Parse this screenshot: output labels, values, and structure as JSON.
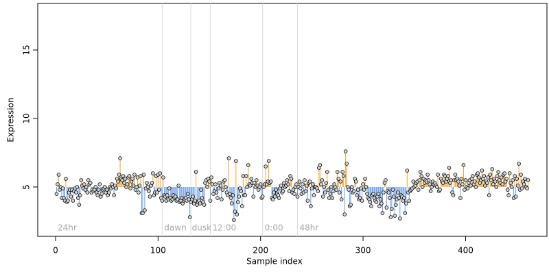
{
  "chart_data": {
    "type": "stem",
    "xlabel": "Sample index",
    "ylabel": "Expression",
    "xlim": [
      -17.4,
      479.4
    ],
    "ylim": [
      1.4,
      18.4
    ],
    "xticks": [
      0,
      100,
      200,
      300,
      400
    ],
    "yticks": [
      5,
      10,
      15
    ],
    "baseline": 5,
    "color_above": "#f0a030",
    "color_below": "#6d9de0",
    "vlines": [
      104,
      132,
      151,
      202,
      236
    ],
    "annotations": [
      {
        "text": "24hr",
        "x": 2
      },
      {
        "text": "dawn",
        "x": 106
      },
      {
        "text": "dusk",
        "x": 133
      },
      {
        "text": "12:00",
        "x": 153
      },
      {
        "text": "0:00",
        "x": 204
      },
      {
        "text": "48hr",
        "x": 238
      }
    ],
    "values": [
      4.5,
      5.2,
      5.9,
      4.8,
      5.0,
      4.2,
      4.9,
      4.2,
      4.0,
      5.6,
      3.9,
      4.0,
      4.6,
      4.8,
      4.3,
      4.8,
      4.0,
      4.7,
      4.9,
      4.6,
      5.0,
      4.2,
      3.7,
      4.4,
      5.5,
      5.1,
      4.9,
      5.2,
      4.8,
      5.0,
      4.6,
      5.5,
      5.2,
      5.3,
      4.6,
      4.8,
      4.7,
      4.8,
      5.0,
      4.6,
      4.4,
      4.8,
      5.2,
      4.3,
      4.5,
      4.8,
      4.9,
      5.0,
      4.6,
      4.8,
      4.4,
      4.6,
      5.0,
      4.9,
      5.2,
      5.0,
      4.4,
      5.1,
      4.9,
      5.6,
      5.4,
      5.9,
      7.1,
      5.6,
      5.5,
      5.8,
      5.3,
      5.6,
      5.0,
      5.2,
      5.7,
      5.8,
      4.9,
      5.4,
      5.6,
      5.1,
      5.9,
      4.8,
      5.0,
      5.7,
      4.6,
      5.1,
      5.8,
      3.1,
      3.1,
      5.9,
      3.3,
      4.9,
      5.3,
      5.0,
      4.7,
      4.3,
      5.1,
      5.3,
      6.0,
      4.4,
      4.6,
      5.8,
      4.6,
      5.9,
      4.8,
      6.0,
      4.2,
      4.0,
      5.7,
      4.4,
      4.3,
      4.0,
      4.4,
      4.1,
      4.9,
      4.2,
      4.0,
      4.1,
      4.4,
      4.2,
      4.3,
      4.0,
      4.1,
      5.1,
      3.9,
      4.0,
      4.2,
      3.8,
      4.0,
      4.1,
      4.2,
      4.0,
      4.5,
      4.1,
      2.8,
      3.9,
      4.1,
      4.3,
      3.8,
      4.0,
      6.1,
      3.7,
      3.9,
      4.0,
      3.8,
      4.8,
      4.2,
      3.9,
      3.7,
      5.3,
      5.5,
      5.0,
      5.6,
      5.4,
      4.0,
      5.7,
      5.2,
      4.5,
      4.7,
      5.2,
      4.6,
      4.2,
      4.9,
      5.3,
      5.1,
      4.1,
      4.8,
      5.4,
      5.5,
      5.0,
      4.6,
      4.4,
      7.1,
      4.5,
      4.2,
      3.8,
      4.4,
      2.6,
      3.2,
      6.9,
      3.0,
      3.9,
      4.3,
      4.9,
      4.7,
      3.6,
      5.8,
      4.4,
      4.4,
      5.8,
      5.0,
      6.6,
      5.2,
      5.1,
      5.6,
      5.3,
      4.3,
      5.3,
      5.0,
      5.5,
      5.1,
      4.8,
      5.0,
      5.2,
      4.2,
      4.3,
      5.0,
      5.2,
      6.5,
      5.2,
      5.4,
      6.9,
      5.3,
      5.4,
      4.2,
      4.1,
      4.6,
      4.3,
      4.8,
      4.5,
      4.4,
      4.2,
      4.9,
      5.1,
      4.6,
      4.7,
      5.3,
      5.0,
      5.1,
      5.5,
      5.2,
      4.7,
      5.8,
      5.6,
      4.6,
      4.8,
      4.5,
      5.0,
      5.2,
      4.3,
      5.0,
      5.4,
      4.9,
      4.5,
      5.2,
      4.6,
      5.5,
      4.7,
      5.1,
      4.0,
      5.3,
      5.4,
      3.6,
      4.9,
      5.2,
      4.4,
      5.0,
      5.0,
      4.9,
      4.7,
      6.4,
      6.6,
      5.2,
      5.5,
      4.3,
      5.0,
      4.6,
      5.3,
      6.1,
      4.8,
      4.2,
      4.5,
      5.0,
      4.2,
      4.7,
      5.2,
      5.0,
      4.8,
      6.1,
      5.6,
      4.6,
      5.4,
      4.1,
      6.1,
      5.8,
      3.0,
      7.6,
      6.7,
      5.0,
      4.8,
      3.6,
      3.7,
      5.0,
      4.6,
      4.7,
      5.6,
      5.4,
      4.4,
      4.8,
      4.1,
      4.2,
      4.9,
      4.0,
      5.2,
      4.8,
      5.6,
      5.0,
      4.5,
      4.2,
      4.1,
      3.9,
      3.6,
      4.4,
      4.5,
      4.2,
      4.0,
      3.9,
      4.3,
      4.5,
      3.6,
      4.1,
      3.8,
      3.1,
      4.6,
      5.3,
      5.5,
      3.5,
      4.7,
      4.6,
      4.2,
      2.8,
      3.4,
      4.8,
      4.3,
      2.9,
      3.7,
      4.1,
      4.6,
      4.2,
      2.7,
      4.4,
      4.3,
      4.0,
      4.2,
      3.1,
      3.8,
      6.2,
      4.6,
      4.0,
      4.7,
      4.8,
      4.9,
      5.4,
      5.0,
      5.1,
      5.3,
      5.4,
      4.8,
      5.5,
      6.1,
      5.8,
      5.0,
      5.6,
      5.3,
      5.5,
      5.4,
      5.9,
      5.5,
      5.2,
      4.7,
      5.0,
      5.4,
      5.2,
      5.3,
      5.1,
      5.0,
      5.9,
      4.7,
      4.8,
      5.6,
      5.4,
      5.3,
      5.9,
      5.8,
      5.4,
      5.6,
      5.8,
      6.4,
      5.3,
      5.5,
      4.6,
      4.4,
      5.5,
      5.9,
      5.5,
      5.6,
      5.4,
      5.1,
      4.2,
      5.6,
      5.2,
      6.6,
      4.8,
      5.5,
      5.0,
      4.9,
      5.3,
      5.5,
      5.1,
      5.6,
      5.8,
      5.2,
      5.4,
      5.0,
      5.9,
      6.0,
      5.7,
      5.3,
      5.5,
      6.2,
      5.6,
      5.8,
      5.1,
      5.4,
      5.3,
      5.7,
      4.4,
      5.9,
      5.5,
      6.3,
      5.2,
      5.6,
      5.4,
      5.0,
      5.8,
      6.1,
      5.5,
      5.3,
      5.7,
      5.2,
      5.9,
      6.0,
      5.4,
      5.6,
      4.8,
      4.4,
      6.0,
      5.3,
      5.0,
      5.5,
      4.2,
      5.8,
      4.3,
      5.6,
      5.1,
      6.7,
      4.8,
      5.9,
      4.9,
      5.4,
      5.2,
      5.6,
      5.0,
      4.9,
      5.5
    ]
  }
}
